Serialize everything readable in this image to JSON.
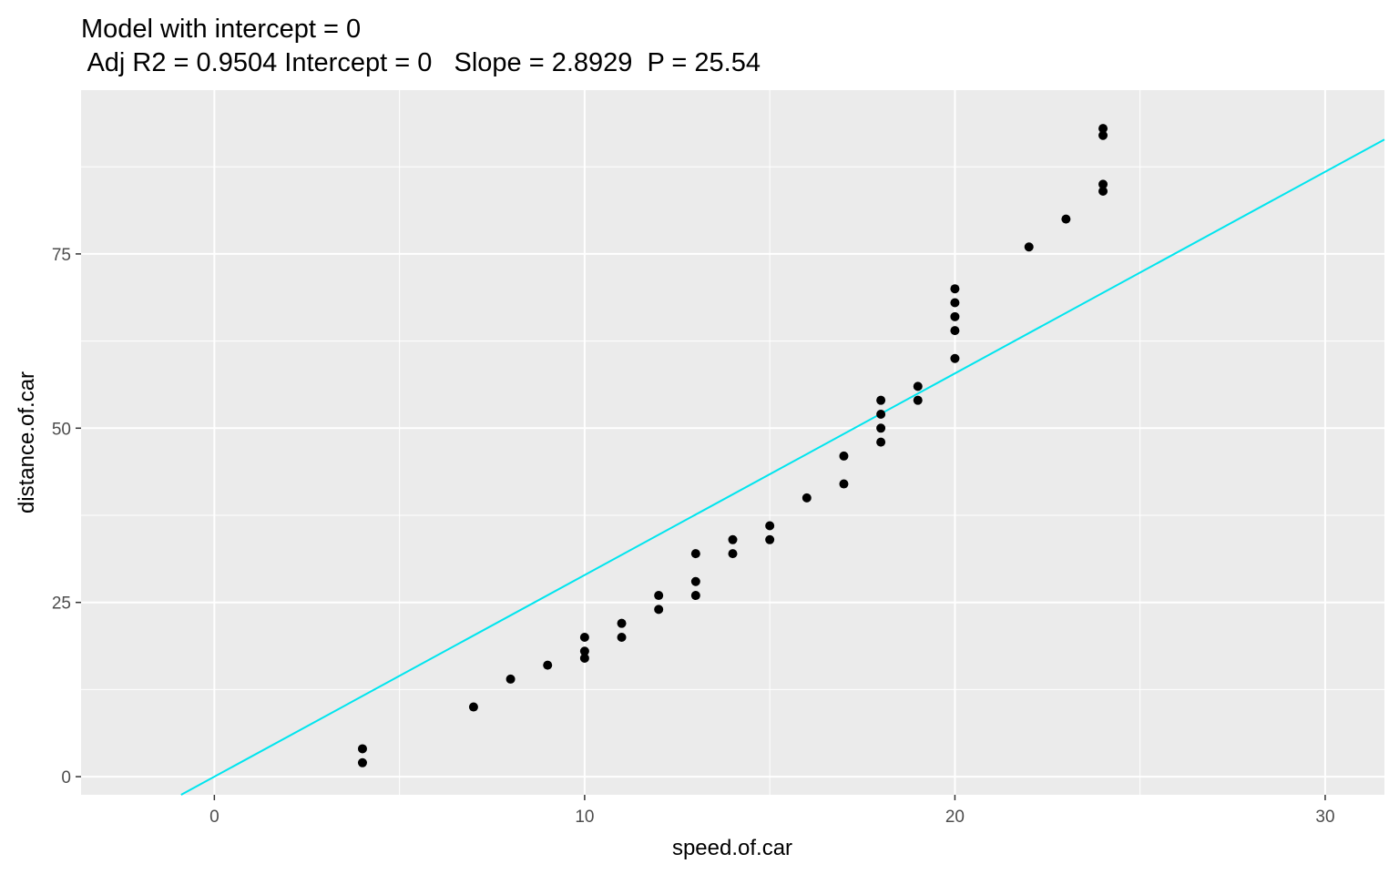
{
  "chart_data": {
    "type": "scatter",
    "title": "Model with intercept = 0",
    "subtitle": " Adj R2 = 0.9504 Intercept = 0   Slope = 2.8929  P = 25.54",
    "xlabel": "speed.of.car",
    "ylabel": "distance.of.car",
    "xlim": [
      -3.6,
      31.6
    ],
    "ylim": [
      -2.6,
      98.5
    ],
    "x_ticks": [
      0,
      10,
      20,
      30
    ],
    "x_tick_labels": [
      "0",
      "10",
      "20",
      "30"
    ],
    "y_ticks": [
      0,
      25,
      50,
      75
    ],
    "y_tick_labels": [
      "0",
      "25",
      "50",
      "75"
    ],
    "grid": true,
    "legend": "none",
    "points": [
      {
        "x": 4,
        "y": 2
      },
      {
        "x": 4,
        "y": 4
      },
      {
        "x": 7,
        "y": 10
      },
      {
        "x": 8,
        "y": 14
      },
      {
        "x": 9,
        "y": 16
      },
      {
        "x": 10,
        "y": 17
      },
      {
        "x": 10,
        "y": 18
      },
      {
        "x": 10,
        "y": 20
      },
      {
        "x": 11,
        "y": 20
      },
      {
        "x": 11,
        "y": 22
      },
      {
        "x": 12,
        "y": 24
      },
      {
        "x": 12,
        "y": 26
      },
      {
        "x": 13,
        "y": 26
      },
      {
        "x": 13,
        "y": 28
      },
      {
        "x": 13,
        "y": 32
      },
      {
        "x": 14,
        "y": 32
      },
      {
        "x": 14,
        "y": 34
      },
      {
        "x": 15,
        "y": 34
      },
      {
        "x": 15,
        "y": 36
      },
      {
        "x": 16,
        "y": 40
      },
      {
        "x": 17,
        "y": 42
      },
      {
        "x": 17,
        "y": 46
      },
      {
        "x": 18,
        "y": 48
      },
      {
        "x": 18,
        "y": 50
      },
      {
        "x": 18,
        "y": 52
      },
      {
        "x": 18,
        "y": 54
      },
      {
        "x": 19,
        "y": 54
      },
      {
        "x": 19,
        "y": 56
      },
      {
        "x": 20,
        "y": 60
      },
      {
        "x": 20,
        "y": 64
      },
      {
        "x": 20,
        "y": 66
      },
      {
        "x": 20,
        "y": 68
      },
      {
        "x": 20,
        "y": 70
      },
      {
        "x": 22,
        "y": 76
      },
      {
        "x": 23,
        "y": 80
      },
      {
        "x": 24,
        "y": 84
      },
      {
        "x": 24,
        "y": 85
      },
      {
        "x": 24,
        "y": 92
      },
      {
        "x": 24,
        "y": 93
      }
    ],
    "fit_line": {
      "intercept": 0,
      "slope": 2.8929
    },
    "colors": {
      "panel": "#ebebeb",
      "grid": "#ffffff",
      "point": "#000000",
      "fit_line": "#00e5ee",
      "tick": "#333333"
    }
  }
}
